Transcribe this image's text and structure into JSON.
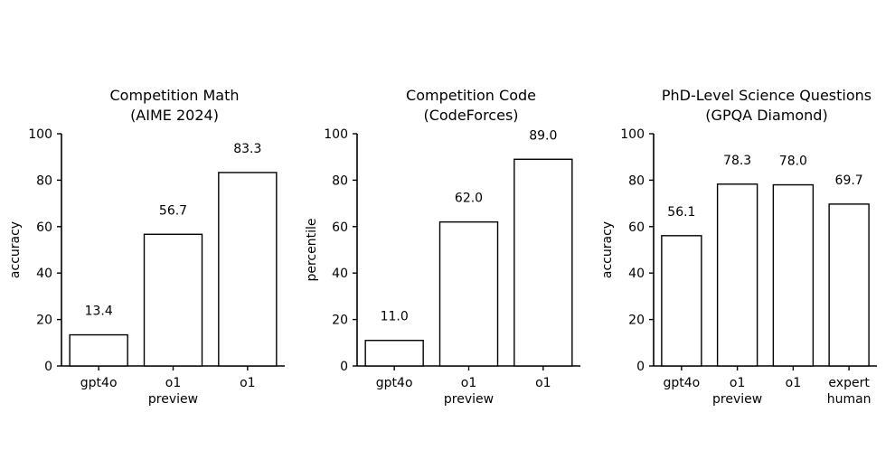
{
  "chart_data": [
    {
      "type": "bar",
      "title": [
        "Competition Math",
        "(AIME 2024)"
      ],
      "ylabel": "accuracy",
      "ylim": [
        0,
        100
      ],
      "yticks": [
        "0",
        "20",
        "40",
        "60",
        "80",
        "100"
      ],
      "categories": [
        [
          "gpt4o"
        ],
        [
          "o1",
          "preview"
        ],
        [
          "o1"
        ]
      ],
      "values": [
        13.4,
        56.7,
        83.3
      ],
      "value_labels": [
        "13.4",
        "56.7",
        "83.3"
      ]
    },
    {
      "type": "bar",
      "title": [
        "Competition Code",
        "(CodeForces)"
      ],
      "ylabel": "percentile",
      "ylim": [
        0,
        100
      ],
      "yticks": [
        "0",
        "20",
        "40",
        "60",
        "80",
        "100"
      ],
      "categories": [
        [
          "gpt4o"
        ],
        [
          "o1",
          "preview"
        ],
        [
          "o1"
        ]
      ],
      "values": [
        11.0,
        62.0,
        89.0
      ],
      "value_labels": [
        "11.0",
        "62.0",
        "89.0"
      ]
    },
    {
      "type": "bar",
      "title": [
        "PhD-Level Science Questions",
        "(GPQA Diamond)"
      ],
      "ylabel": "accuracy",
      "ylim": [
        0,
        100
      ],
      "yticks": [
        "0",
        "20",
        "40",
        "60",
        "80",
        "100"
      ],
      "categories": [
        [
          "gpt4o"
        ],
        [
          "o1",
          "preview"
        ],
        [
          "o1"
        ],
        [
          "expert",
          "human"
        ]
      ],
      "values": [
        56.1,
        78.3,
        78.0,
        69.7
      ],
      "value_labels": [
        "56.1",
        "78.3",
        "78.0",
        "69.7"
      ]
    }
  ],
  "colors": {
    "bar_edge": "#000000",
    "bar_fill": "#ffffff",
    "text": "#000000"
  }
}
